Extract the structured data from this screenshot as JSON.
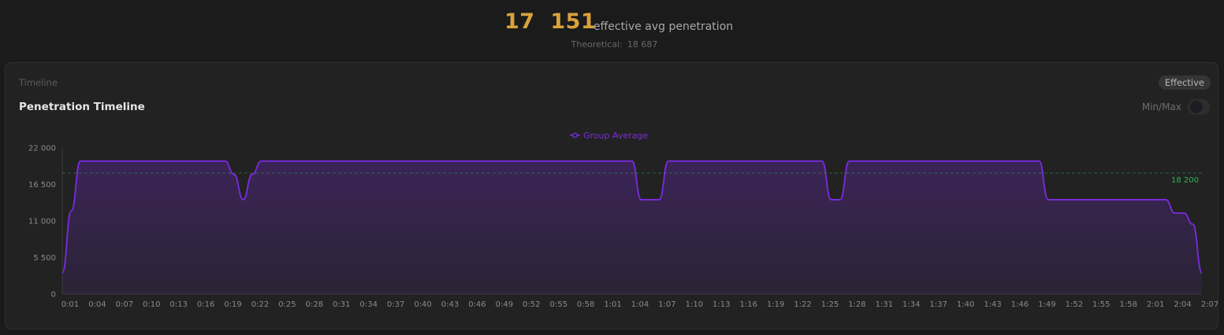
{
  "summary": {
    "value": "17  151",
    "caption": "effective avg penetration",
    "theoretical_label": "Theoretical:",
    "theoretical_value": "18 687"
  },
  "card": {
    "section_label": "Timeline",
    "title": "Penetration Timeline",
    "mode_badge": "Effective",
    "toggle_label": "Min/Max",
    "toggle_on": false
  },
  "colors": {
    "accent": "#d9a23b",
    "series": "#7b2be0",
    "reference": "#2fb35a"
  },
  "chart_data": {
    "type": "area",
    "title": "Penetration Timeline",
    "xlabel": "",
    "ylabel": "",
    "ylim": [
      0,
      22000
    ],
    "yticks": [
      0,
      5500,
      11000,
      16500,
      22000
    ],
    "ytick_labels": [
      "0",
      "5 500",
      "11 000",
      "16 500",
      "22 000"
    ],
    "xticks": [
      "0:01",
      "0:04",
      "0:07",
      "0:10",
      "0:13",
      "0:16",
      "0:19",
      "0:22",
      "0:25",
      "0:28",
      "0:31",
      "0:34",
      "0:37",
      "0:40",
      "0:43",
      "0:46",
      "0:49",
      "0:52",
      "0:55",
      "0:58",
      "1:01",
      "1:04",
      "1:07",
      "1:10",
      "1:13",
      "1:16",
      "1:19",
      "1:22",
      "1:25",
      "1:28",
      "1:31",
      "1:34",
      "1:37",
      "1:40",
      "1:43",
      "1:46",
      "1:49",
      "1:52",
      "1:55",
      "1:58",
      "2:01",
      "2:04",
      "2:07"
    ],
    "legend_position": "top-center",
    "grid": false,
    "reference_line": {
      "value": 18200,
      "label": "18 200"
    },
    "series": [
      {
        "name": "Group Average",
        "x": [
          "0:01",
          "0:02",
          "0:03",
          "0:19",
          "0:20",
          "0:21",
          "0:22",
          "0:23",
          "1:04",
          "1:05",
          "1:07",
          "1:08",
          "1:25",
          "1:26",
          "1:27",
          "1:28",
          "1:49",
          "1:50",
          "2:03",
          "2:04",
          "2:05",
          "2:06",
          "2:07"
        ],
        "values": [
          3200,
          12500,
          20000,
          20000,
          18000,
          14200,
          18000,
          20000,
          20000,
          14200,
          14200,
          20000,
          20000,
          14200,
          14200,
          20000,
          20000,
          14200,
          14200,
          12200,
          12200,
          10500,
          3200
        ]
      }
    ]
  }
}
